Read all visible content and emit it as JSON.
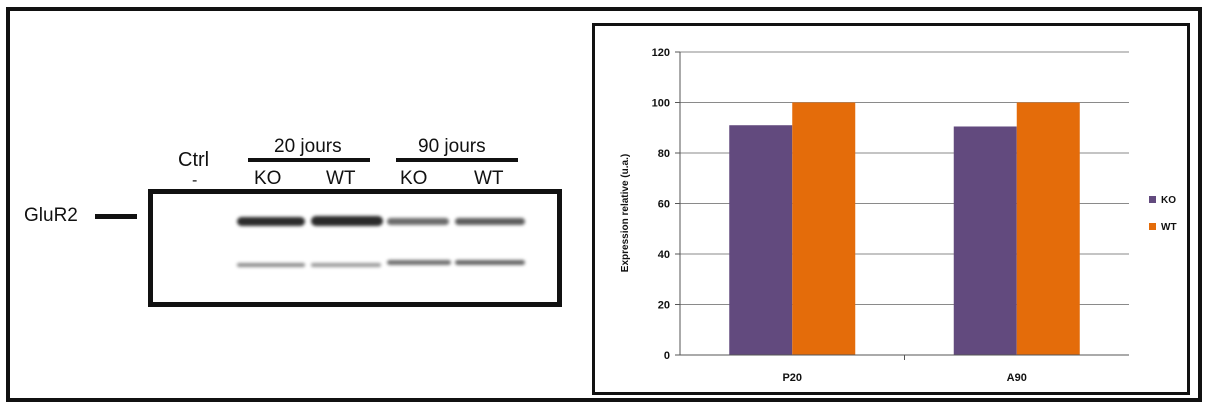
{
  "blot": {
    "ctrl_label": "Ctrl",
    "ctrl_sub": "-",
    "group1_label": "20 jours",
    "group2_label": "90 jours",
    "lane_labels": [
      "KO",
      "WT",
      "KO",
      "WT"
    ],
    "protein_label": "GluR2"
  },
  "chart_data": {
    "type": "bar",
    "categories": [
      "P20",
      "A90"
    ],
    "series": [
      {
        "name": "KO",
        "values": [
          91,
          90.5
        ],
        "color": "#624a7e"
      },
      {
        "name": "WT",
        "values": [
          100,
          100
        ],
        "color": "#e46c0a"
      }
    ],
    "ylabel": "Expression relative (u.a.)",
    "ylim": [
      0,
      120
    ],
    "yticks": [
      0,
      20,
      40,
      60,
      80,
      100,
      120
    ],
    "grid": true,
    "legend": "right"
  }
}
